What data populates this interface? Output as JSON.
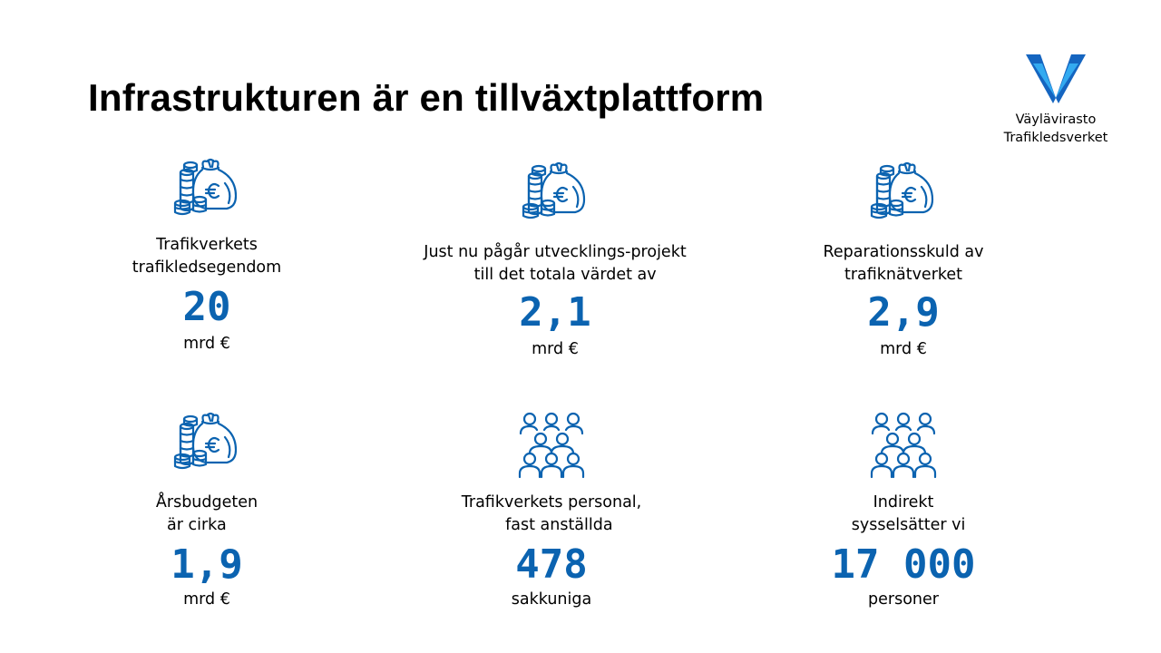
{
  "title": "Infrastrukturen är en tillväxtplattform",
  "logo": {
    "line1": "Väylävirasto",
    "line2": "Trafikledsverket"
  },
  "colors": {
    "accent": "#0b63b0",
    "logo_dark": "#1565c0",
    "logo_light": "#33aaf0"
  },
  "stats": [
    {
      "icon": "money-bag-coins-icon",
      "label": "Trafikverkets\ntrafikledsegendom",
      "value": "20",
      "unit": "mrd €"
    },
    {
      "icon": "money-bag-coins-icon",
      "label": "Just nu pågår utvecklings-projekt\n    till det totala värdet av",
      "value": "2,1",
      "unit": "mrd €"
    },
    {
      "icon": "money-bag-coins-icon",
      "label": "Reparationsskuld av\ntrafiknätverket",
      "value": "2,9",
      "unit": "mrd €"
    },
    {
      "icon": "money-bag-coins-icon",
      "label": "Årsbudgeten\när cirka    ",
      "value": "1,9",
      "unit": "mrd €"
    },
    {
      "icon": "people-group-icon",
      "label": "Trafikverkets personal,\n   fast anställda",
      "value": "478",
      "unit": "sakkuniga"
    },
    {
      "icon": "people-group-icon",
      "label": "Indirekt\n  sysselsätter vi",
      "value": "17 000",
      "unit": "personer"
    }
  ]
}
